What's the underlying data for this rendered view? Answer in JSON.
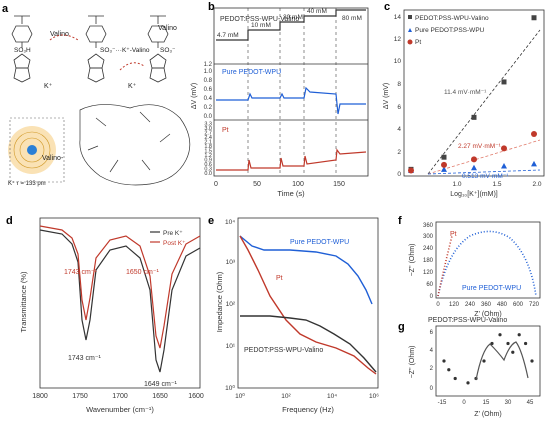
{
  "panels": {
    "a": {
      "label": "a",
      "scheme_valino_1": "Valino",
      "scheme_valino_2": "Valino",
      "scheme_k_1": "K⁺",
      "scheme_k_2": "K⁺",
      "scheme_bound": "SO₃⁻···K⁺-Valino",
      "so3h": "SO₃H",
      "so3minus": "SO₃⁻",
      "ion_label": "K⁺ r = 133 pm",
      "macrocycle_label": "Valino-"
    },
    "b": {
      "label": "b",
      "legend_top": "PEDOT:PSS-WPU-Valino",
      "legend_mid": "Pure PEDOT-WPU",
      "legend_bot": "Pt",
      "concentrations": [
        "4.7 mM",
        "10 mM",
        "20 mM",
        "40 mM",
        "80 mM"
      ],
      "ylabel": "ΔV (mV)",
      "xlabel": "Time (s)",
      "xticks": [
        "0",
        "50",
        "100",
        "150"
      ],
      "yticks_mid": [
        "0.0",
        "0.2",
        "0.4",
        "0.6",
        "0.8",
        "1.0",
        "1.2"
      ],
      "yticks_bot": [
        "0.0",
        "0.3",
        "0.6",
        "0.9",
        "1.2",
        "1.5",
        "1.8",
        "2.1",
        "2.4",
        "2.7",
        "3.0",
        "3.3"
      ]
    },
    "c": {
      "label": "c",
      "legend": [
        "PEDOT:PSS-WPU-Valino",
        "Pure PEDOT:PSS-WPU",
        "Pt"
      ],
      "ylabel": "ΔV (mV)",
      "xlabel": "Log₁₀[K⁺](mM)]",
      "xticks": [
        "1.0",
        "1.5",
        "2.0"
      ],
      "yticks": [
        "0",
        "2",
        "4",
        "6",
        "8",
        "10",
        "12",
        "14"
      ],
      "slopes": [
        "11.4 mV·mM⁻¹",
        "2.27 mV·mM⁻¹",
        "0.513 mV·mM⁻¹"
      ]
    },
    "d": {
      "label": "d",
      "legend": [
        "Pre K⁺",
        "Post K⁺"
      ],
      "ann": [
        "1743 cm⁻¹",
        "1650 cm⁻¹",
        "1743 cm⁻¹",
        "1649 cm⁻¹"
      ],
      "ylabel": "Transmittance (%)",
      "xlabel": "Wavenumber (cm⁻¹)",
      "xticks": [
        "1800",
        "1750",
        "1700",
        "1650",
        "1600"
      ]
    },
    "e": {
      "label": "e",
      "series_labels": [
        "Pure PEDOT-WPU",
        "Pt",
        "PEDOT:PSS-WPU-Valino"
      ],
      "ylabel": "Impedance (Ohm)",
      "xlabel": "Frequency (Hz)",
      "xticks": [
        "10⁰",
        "10²",
        "10⁴",
        "10⁶"
      ],
      "yticks": [
        "10⁰",
        "10¹",
        "10²",
        "10³",
        "10⁴"
      ]
    },
    "f": {
      "label": "f",
      "ylabel": "−Z'' (Ohm)",
      "xlabel": "Z' (Ohm)",
      "yticks": [
        "0",
        "60",
        "120",
        "180",
        "240",
        "300",
        "360"
      ],
      "xticks": [
        "0",
        "120",
        "240",
        "360",
        "480",
        "600",
        "720"
      ],
      "labels": [
        "Pt",
        "Pure PEDOT-WPU"
      ]
    },
    "g": {
      "label": "g",
      "title": "PEDOT:PSS-WPU-Valino",
      "ylabel": "−Z'' (Ohm)",
      "xlabel": "Z' (Ohm)",
      "yticks": [
        "0",
        "2",
        "4",
        "6"
      ],
      "xticks": [
        "-15",
        "0",
        "15",
        "30",
        "45"
      ]
    }
  },
  "colors": {
    "black": "#2b2b2b",
    "blue": "#1f5fd6",
    "red": "#c0392b",
    "gray": "#555555",
    "pale_red": "#e07a6a"
  },
  "chart_data": [
    {
      "type": "line",
      "panel": "b",
      "x": [
        0,
        20,
        21,
        40,
        50,
        51,
        80,
        81,
        115,
        116,
        145,
        146,
        185
      ],
      "series": [
        {
          "name": "PEDOT:PSS-WPU-Valino",
          "values": [
            4.7,
            4.7,
            10,
            10,
            10,
            20,
            20,
            40,
            40,
            80,
            80,
            80,
            80
          ]
        },
        {
          "name": "Pure PEDOT-WPU",
          "values": [
            0.35,
            0.35,
            0.45,
            0.42,
            0.4,
            0.45,
            0.42,
            0.45,
            0.62,
            0.6,
            0.4,
            0.45,
            0.45
          ]
        },
        {
          "name": "Pt",
          "values": [
            0.3,
            0.3,
            0.6,
            0.5,
            0.5,
            0.7,
            0.6,
            0.8,
            1.2,
            1.1,
            1.4,
            1.9,
            1.8
          ]
        }
      ]
    },
    {
      "type": "scatter",
      "panel": "c",
      "series": [
        {
          "name": "PEDOT:PSS-WPU-Valino",
          "x": [
            0.67,
            1.0,
            1.3,
            1.6,
            1.9
          ],
          "y": [
            0.1,
            1.2,
            4.8,
            8.0,
            13.8
          ]
        },
        {
          "name": "Pure PEDOT:PSS-WPU",
          "x": [
            0.67,
            1.0,
            1.3,
            1.6,
            1.9
          ],
          "y": [
            0.0,
            0.1,
            0.25,
            0.4,
            0.6
          ]
        },
        {
          "name": "Pt",
          "x": [
            0.67,
            1.0,
            1.3,
            1.6,
            1.9
          ],
          "y": [
            0.0,
            0.5,
            1.0,
            2.0,
            3.3
          ]
        }
      ],
      "ylim": [
        -0.5,
        14.5
      ],
      "xlim": [
        0.6,
        2.0
      ]
    },
    {
      "type": "line",
      "panel": "d",
      "x": [
        1800,
        1770,
        1755,
        1743,
        1730,
        1700,
        1680,
        1665,
        1650,
        1635,
        1620,
        1600
      ],
      "series": [
        {
          "name": "Pre K⁺",
          "values": [
            92,
            90,
            80,
            30,
            75,
            88,
            80,
            55,
            8,
            50,
            82,
            90
          ]
        },
        {
          "name": "Post K⁺",
          "values": [
            95,
            93,
            85,
            40,
            82,
            92,
            88,
            70,
            22,
            65,
            88,
            94
          ]
        }
      ]
    },
    {
      "type": "line",
      "panel": "e",
      "x": [
        1,
        10,
        100,
        1000,
        10000,
        100000,
        1000000
      ],
      "series": [
        {
          "name": "Pure PEDOT-WPU",
          "values": [
            20000,
            12000,
            10000,
            9500,
            8000,
            3000,
            100
          ]
        },
        {
          "name": "Pt",
          "values": [
            20000,
            7000,
            700,
            60,
            15,
            8,
            3
          ]
        },
        {
          "name": "PEDOT:PSS-WPU-Valino",
          "values": [
            40,
            40,
            38,
            35,
            20,
            10,
            3
          ]
        }
      ]
    },
    {
      "type": "scatter",
      "panel": "f",
      "series": [
        {
          "name": "Pure PEDOT-WPU",
          "x": [
            0,
            100,
            200,
            300,
            400,
            500,
            600,
            700,
            720
          ],
          "y": [
            0,
            200,
            300,
            340,
            345,
            320,
            240,
            100,
            40
          ]
        },
        {
          "name": "Pt",
          "x": [
            0,
            20,
            40,
            60,
            80,
            100
          ],
          "y": [
            0,
            100,
            200,
            280,
            330,
            360
          ]
        }
      ]
    },
    {
      "type": "scatter",
      "panel": "g",
      "series": [
        {
          "name": "PEDOT:PSS-WPU-Valino",
          "x": [
            -15,
            -12,
            -8,
            0,
            5,
            10,
            15,
            20,
            25,
            28,
            32,
            36,
            40
          ],
          "y": [
            3,
            2,
            1,
            0.5,
            1,
            3,
            5,
            6,
            5,
            4,
            6,
            5,
            3
          ]
        }
      ]
    }
  ]
}
